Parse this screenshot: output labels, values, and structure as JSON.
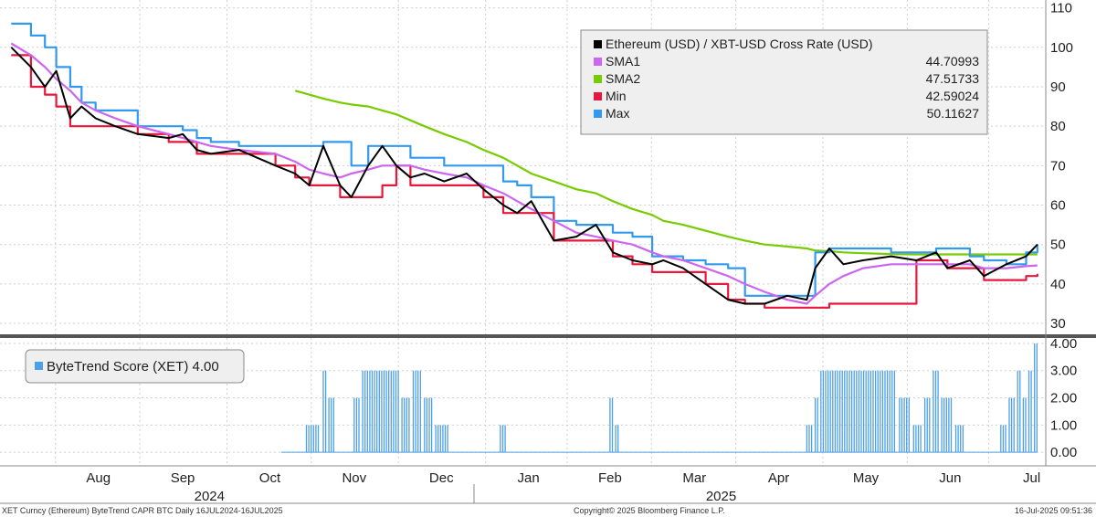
{
  "colors": {
    "price": "#000000",
    "sma1": "#cc66ee",
    "sma2": "#77cc00",
    "min": "#e8173c",
    "max": "#3399ee",
    "score": "#4d9fe6",
    "grid": "#cfcfcf",
    "divider": "#555555"
  },
  "chart_data": [
    {
      "type": "line",
      "title": "",
      "legend": [
        {
          "name": "Ethereum (USD) / XBT-USD Cross Rate (USD)",
          "value": ""
        },
        {
          "name": "SMA1",
          "value": "44.70993"
        },
        {
          "name": "SMA2",
          "value": "47.51733"
        },
        {
          "name": "Min",
          "value": "42.59024"
        },
        {
          "name": "Max",
          "value": "50.11627"
        }
      ],
      "legend_position": "top-right",
      "ylim": [
        27,
        112
      ],
      "yticks": [
        30,
        40,
        50,
        60,
        70,
        80,
        90,
        100,
        110
      ],
      "grid": true,
      "x": [
        "2024-07-16",
        "2024-07-23",
        "2024-07-28",
        "2024-08-01",
        "2024-08-06",
        "2024-08-10",
        "2024-08-15",
        "2024-08-22",
        "2024-08-30",
        "2024-09-10",
        "2024-09-15",
        "2024-09-20",
        "2024-09-25",
        "2024-10-05",
        "2024-10-18",
        "2024-10-25",
        "2024-10-30",
        "2024-11-04",
        "2024-11-10",
        "2024-11-14",
        "2024-11-20",
        "2024-11-25",
        "2024-11-30",
        "2024-12-05",
        "2024-12-10",
        "2024-12-17",
        "2024-12-25",
        "2024-12-31",
        "2025-01-07",
        "2025-01-12",
        "2025-01-17",
        "2025-01-25",
        "2025-02-02",
        "2025-02-09",
        "2025-02-15",
        "2025-02-22",
        "2025-03-01",
        "2025-03-05",
        "2025-03-12",
        "2025-03-20",
        "2025-03-28",
        "2025-04-03",
        "2025-04-10",
        "2025-04-18",
        "2025-04-25",
        "2025-04-28",
        "2025-05-03",
        "2025-05-08",
        "2025-05-15",
        "2025-05-25",
        "2025-06-03",
        "2025-06-10",
        "2025-06-14",
        "2025-06-22",
        "2025-06-27",
        "2025-07-05",
        "2025-07-12",
        "2025-07-16"
      ],
      "series": [
        {
          "name": "Ethereum (USD) / XBT-USD Cross Rate (USD)",
          "values": [
            100,
            95,
            90,
            94,
            82,
            85,
            82,
            80,
            78,
            77,
            78,
            74,
            73,
            74,
            70,
            68,
            65,
            75,
            65,
            62,
            70,
            75,
            70,
            67,
            68,
            66,
            68,
            64,
            60,
            58,
            61,
            51,
            52,
            55,
            48,
            46,
            45,
            46,
            44,
            40,
            36,
            35,
            35,
            37,
            36,
            44,
            49,
            45,
            46,
            47,
            46,
            48,
            44,
            46,
            42,
            45,
            47,
            50
          ]
        },
        {
          "name": "SMA1",
          "values": [
            101,
            98,
            95,
            92,
            89,
            86,
            84,
            82,
            80,
            78,
            77,
            76,
            75,
            74,
            73,
            71,
            69,
            68,
            67,
            68,
            69,
            70,
            70,
            70,
            69,
            68,
            67,
            65,
            63,
            61,
            59,
            56,
            53,
            52,
            51,
            50,
            48,
            47,
            46,
            44,
            42,
            40,
            38,
            36,
            35,
            37,
            40,
            42,
            44,
            45,
            45,
            45,
            45,
            45,
            44,
            44,
            44.5,
            44.7
          ]
        },
        {
          "name": "SMA2",
          "values": [
            null,
            null,
            null,
            null,
            null,
            null,
            null,
            null,
            null,
            null,
            null,
            null,
            null,
            null,
            null,
            89,
            88,
            87,
            86,
            85.5,
            85,
            84,
            83,
            81.5,
            80,
            78,
            76,
            74,
            72,
            70,
            68,
            66,
            64,
            63,
            61,
            59,
            57.5,
            56,
            55,
            53.5,
            52,
            51,
            50,
            49.5,
            49,
            48.5,
            48.3,
            48,
            47.8,
            47.6,
            47.5,
            47.5,
            47.5,
            47.5,
            47.5,
            47.5,
            47.5,
            47.5
          ]
        },
        {
          "name": "Min",
          "values": [
            98,
            90,
            88,
            85,
            80,
            80,
            80,
            80,
            78,
            76,
            76,
            73,
            73,
            73,
            70,
            67,
            65,
            65,
            62,
            62,
            62,
            65,
            70,
            65,
            65,
            65,
            65,
            62,
            58,
            58,
            58,
            51,
            51,
            51,
            47,
            45,
            43,
            43,
            43,
            40,
            36,
            35,
            34,
            34,
            34,
            34,
            35,
            35,
            35,
            35,
            46,
            46,
            44,
            44,
            41,
            41,
            42,
            42.59
          ]
        },
        {
          "name": "Max",
          "values": [
            106,
            103,
            100,
            95,
            90,
            86,
            84,
            84,
            80,
            80,
            79,
            77,
            76,
            75,
            75,
            75,
            75,
            76,
            76,
            70,
            75,
            75,
            75,
            72,
            72,
            70,
            70,
            70,
            66,
            65,
            62,
            56,
            55,
            55,
            53,
            52,
            47,
            47,
            46,
            45,
            44,
            37,
            37,
            37,
            37,
            48,
            49,
            49,
            49,
            48,
            48,
            49,
            49,
            47,
            46,
            45,
            48,
            50.12
          ]
        }
      ]
    },
    {
      "type": "bar",
      "legend": [
        {
          "name": "ByteTrend Score (XET)",
          "value": "4.00"
        }
      ],
      "legend_position": "top-left",
      "ylim": [
        -0.5,
        4.2
      ],
      "yticks": [
        "0.00",
        "1.00",
        "2.00",
        "3.00",
        "4.00"
      ],
      "bars": [
        {
          "from": "2024-10-29",
          "to": "2024-11-03",
          "value": 1
        },
        {
          "from": "2024-11-04",
          "to": "2024-11-05",
          "value": 3
        },
        {
          "from": "2024-11-06",
          "to": "2024-11-08",
          "value": 2
        },
        {
          "from": "2024-11-09",
          "to": "2024-11-14",
          "value": 0
        },
        {
          "from": "2024-11-15",
          "to": "2024-11-17",
          "value": 2
        },
        {
          "from": "2024-11-18",
          "to": "2024-12-01",
          "value": 3
        },
        {
          "from": "2024-12-02",
          "to": "2024-12-05",
          "value": 2
        },
        {
          "from": "2024-12-06",
          "to": "2024-12-09",
          "value": 3
        },
        {
          "from": "2024-12-10",
          "to": "2024-12-13",
          "value": 2
        },
        {
          "from": "2024-12-14",
          "to": "2024-12-19",
          "value": 1
        },
        {
          "from": "2025-01-06",
          "to": "2025-01-08",
          "value": 1
        },
        {
          "from": "2025-02-14",
          "to": "2025-02-15",
          "value": 2
        },
        {
          "from": "2025-02-16",
          "to": "2025-02-17",
          "value": 1
        },
        {
          "from": "2025-04-25",
          "to": "2025-04-27",
          "value": 1
        },
        {
          "from": "2025-04-28",
          "to": "2025-04-29",
          "value": 2
        },
        {
          "from": "2025-04-30",
          "to": "2025-05-27",
          "value": 3
        },
        {
          "from": "2025-05-28",
          "to": "2025-06-01",
          "value": 2
        },
        {
          "from": "2025-06-02",
          "to": "2025-06-05",
          "value": 1
        },
        {
          "from": "2025-06-06",
          "to": "2025-06-08",
          "value": 2
        },
        {
          "from": "2025-06-09",
          "to": "2025-06-11",
          "value": 3
        },
        {
          "from": "2025-06-12",
          "to": "2025-06-16",
          "value": 2
        },
        {
          "from": "2025-06-17",
          "to": "2025-06-20",
          "value": 1
        },
        {
          "from": "2025-07-03",
          "to": "2025-07-05",
          "value": 1
        },
        {
          "from": "2025-07-06",
          "to": "2025-07-08",
          "value": 2
        },
        {
          "from": "2025-07-09",
          "to": "2025-07-10",
          "value": 3
        },
        {
          "from": "2025-07-11",
          "to": "2025-07-12",
          "value": 2
        },
        {
          "from": "2025-07-13",
          "to": "2025-07-14",
          "value": 3
        },
        {
          "from": "2025-07-15",
          "to": "2025-07-16",
          "value": 4
        }
      ]
    }
  ],
  "x_axis": {
    "months": [
      {
        "label": "Aug",
        "date": "2024-08-16"
      },
      {
        "label": "Sep",
        "date": "2024-09-15"
      },
      {
        "label": "Oct",
        "date": "2024-10-16"
      },
      {
        "label": "Nov",
        "date": "2024-11-15"
      },
      {
        "label": "Dec",
        "date": "2024-12-16"
      },
      {
        "label": "Jan",
        "date": "2025-01-16"
      },
      {
        "label": "Feb",
        "date": "2025-02-14"
      },
      {
        "label": "Mar",
        "date": "2025-03-16"
      },
      {
        "label": "Apr",
        "date": "2025-04-15"
      },
      {
        "label": "May",
        "date": "2025-05-16"
      },
      {
        "label": "Jun",
        "date": "2025-06-15"
      },
      {
        "label": "Jul",
        "date": "2025-07-14"
      }
    ],
    "years": [
      {
        "label": "2024",
        "date": "2024-10-01"
      },
      {
        "label": "2025",
        "date": "2025-04-01"
      }
    ]
  },
  "footer": {
    "left": "XET Curncy (Ethereum) ByteTrend CAPR BTC  Daily 16JUL2024-16JUL2025",
    "center": "Copyright© 2025 Bloomberg Finance L.P.",
    "right": "16-Jul-2025 09:51:36"
  }
}
